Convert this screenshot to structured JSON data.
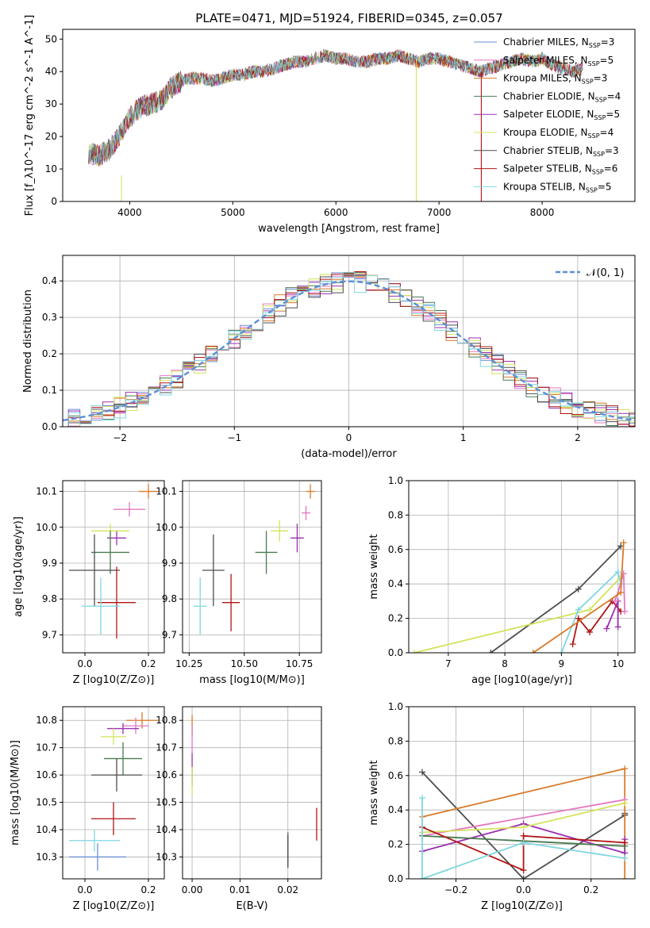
{
  "figure_title": "PLATE=0471, MJD=51924, FIBERID=0345, z=0.057",
  "colors": {
    "Chabrier MILES": "#6b8fd6",
    "Salpeter MILES": "#e377c2",
    "Kroupa MILES": "#d97a2a",
    "Chabrier ELODIE": "#4a7a50",
    "Salpeter ELODIE": "#9b30b0",
    "Kroupa ELODIE": "#d4e35a",
    "Chabrier STELIB": "#4d4d4d",
    "Salpeter STELIB": "#b01515",
    "Kroupa STELIB": "#7fd6e0",
    "gauss": "#5b8fd6"
  },
  "chart_data": [
    {
      "type": "line",
      "id": "spectrum",
      "xlabel": "wavelength [Angstrom, rest frame]",
      "ylabel": "Flux [f_λ10^-17 erg cm^-2 s^-1 A^-1]",
      "xlim": [
        3350,
        8900
      ],
      "ylim": [
        0,
        53
      ],
      "xticks": [
        4000,
        5000,
        6000,
        7000,
        8000
      ],
      "yticks": [
        0,
        10,
        20,
        30,
        40,
        50
      ],
      "x": [
        3600,
        3700,
        3800,
        3900,
        4000,
        4100,
        4200,
        4300,
        4400,
        4500,
        4600,
        4700,
        4800,
        4900,
        5000,
        5100,
        5200,
        5300,
        5400,
        5500,
        5600,
        5700,
        5800,
        5900,
        6000,
        6100,
        6200,
        6300,
        6400,
        6500,
        6600,
        6700,
        6800,
        6900,
        7000,
        7100,
        7200,
        7300,
        7400,
        7500,
        7600,
        7700,
        7800,
        7900,
        8000,
        8100,
        8200,
        8300,
        8400
      ],
      "y": [
        15,
        14,
        16,
        20,
        26,
        29,
        30,
        31,
        35,
        37,
        38,
        38,
        37,
        38,
        39,
        39,
        40,
        40,
        41,
        42,
        43,
        43,
        44,
        45,
        44,
        44,
        43,
        43,
        44,
        44,
        45,
        44,
        43,
        44,
        44,
        43,
        42,
        41,
        40,
        41,
        42,
        43,
        44,
        43,
        44,
        42,
        41,
        40,
        41
      ],
      "series": [
        {
          "name": "Chabrier MILES, N_SSP=3",
          "label_main": "Chabrier MILES, N",
          "label_sub": "SSP",
          "label_end": "=3"
        },
        {
          "name": "Salpeter MILES, N_SSP=5",
          "label_main": "Salpeter MILES, N",
          "label_sub": "SSP",
          "label_end": "=5"
        },
        {
          "name": "Kroupa MILES, N_SSP=3",
          "label_main": "Kroupa MILES, N",
          "label_sub": "SSP",
          "label_end": "=3"
        },
        {
          "name": "Chabrier ELODIE, N_SSP=4",
          "label_main": "Chabrier ELODIE, N",
          "label_sub": "SSP",
          "label_end": "=4"
        },
        {
          "name": "Salpeter ELODIE, N_SSP=5",
          "label_main": "Salpeter ELODIE, N",
          "label_sub": "SSP",
          "label_end": "=5"
        },
        {
          "name": "Kroupa ELODIE, N_SSP=4",
          "label_main": "Kroupa ELODIE, N",
          "label_sub": "SSP",
          "label_end": "=4"
        },
        {
          "name": "Chabrier STELIB, N_SSP=3",
          "label_main": "Chabrier STELIB, N",
          "label_sub": "SSP",
          "label_end": "=3"
        },
        {
          "name": "Salpeter STELIB, N_SSP=6",
          "label_main": "Salpeter STELIB, N",
          "label_sub": "SSP",
          "label_end": "=6"
        },
        {
          "name": "Kroupa STELIB, N_SSP=5",
          "label_main": "Kroupa STELIB, N",
          "label_sub": "SSP",
          "label_end": "=5"
        }
      ],
      "legend": "upper right"
    },
    {
      "type": "line",
      "id": "histogram",
      "xlabel": "(data-model)/error",
      "ylabel": "Normed distribution",
      "xlim": [
        -2.5,
        2.5
      ],
      "ylim": [
        0,
        0.47
      ],
      "xticks": [
        -2,
        -1,
        0,
        1,
        2
      ],
      "yticks": [
        0.0,
        0.1,
        0.2,
        0.3,
        0.4
      ],
      "gauss_label": "𝒩(0, 1)",
      "legend": "upper right",
      "grid": true
    },
    {
      "type": "scatter",
      "id": "age_vs_Z",
      "xlabel": "Z [log10(Z/Z⊙)]",
      "ylabel": "age  [log10(age/yr)]",
      "xlim": [
        -0.07,
        0.25
      ],
      "ylim": [
        9.65,
        10.13
      ],
      "xticks": [
        0.0,
        0.2
      ],
      "yticks": [
        9.7,
        9.8,
        9.9,
        10.0,
        10.1
      ],
      "points": [
        {
          "x": 0.2,
          "y": 10.1,
          "xerr": 0.03,
          "yerr": 0.02
        },
        {
          "x": 0.14,
          "y": 10.05,
          "xerr": 0.05,
          "yerr": 0.02
        },
        {
          "x": 0.1,
          "y": 9.97,
          "xerr": 0.03,
          "yerr": 0.02
        },
        {
          "x": 0.08,
          "y": 9.99,
          "xerr": 0.06,
          "yerr": 0.02
        },
        {
          "x": 0.08,
          "y": 9.93,
          "xerr": 0.06,
          "yerr": 0.06
        },
        {
          "x": 0.03,
          "y": 9.88,
          "xerr": 0.08,
          "yerr": 0.1
        },
        {
          "x": 0.1,
          "y": 9.79,
          "xerr": 0.06,
          "yerr": 0.1
        },
        {
          "x": 0.05,
          "y": 9.78,
          "xerr": 0.06,
          "yerr": 0.08
        }
      ]
    },
    {
      "type": "scatter",
      "id": "age_vs_mass",
      "xlabel": "mass [log10(M/M⊙)]",
      "ylabel": "",
      "xlim": [
        10.22,
        10.85
      ],
      "ylim": [
        9.65,
        10.13
      ],
      "xticks": [
        10.25,
        10.5,
        10.75
      ],
      "yticks": [
        9.7,
        9.8,
        9.9,
        10.0,
        10.1
      ],
      "points": [
        {
          "x": 10.8,
          "y": 10.1,
          "xerr": 0.02,
          "yerr": 0.02
        },
        {
          "x": 10.78,
          "y": 10.04,
          "xerr": 0.02,
          "yerr": 0.02
        },
        {
          "x": 10.74,
          "y": 9.97,
          "xerr": 0.03,
          "yerr": 0.04
        },
        {
          "x": 10.66,
          "y": 9.99,
          "xerr": 0.04,
          "yerr": 0.03
        },
        {
          "x": 10.6,
          "y": 9.93,
          "xerr": 0.05,
          "yerr": 0.06
        },
        {
          "x": 10.36,
          "y": 9.88,
          "xerr": 0.05,
          "yerr": 0.1
        },
        {
          "x": 10.44,
          "y": 9.79,
          "xerr": 0.04,
          "yerr": 0.08
        },
        {
          "x": 10.3,
          "y": 9.78,
          "xerr": 0.03,
          "yerr": 0.08
        }
      ]
    },
    {
      "type": "line",
      "id": "weight_vs_age",
      "xlabel": "age  [log10(age/yr)]",
      "ylabel": "mass weight",
      "xlim": [
        6.3,
        10.3
      ],
      "ylim": [
        0,
        1.0
      ],
      "xticks": [
        7,
        8,
        9,
        10
      ],
      "yticks": [
        0.0,
        0.2,
        0.4,
        0.6,
        0.8,
        1.0
      ],
      "series": [
        {
          "name": "Chabrier STELIB",
          "x": [
            7.75,
            9.3,
            10.05
          ],
          "y": [
            0.0,
            0.37,
            0.62
          ]
        },
        {
          "name": "Kroupa ELODIE",
          "x": [
            6.4,
            9.5,
            10.05
          ],
          "y": [
            0.0,
            0.25,
            0.44
          ]
        },
        {
          "name": "Kroupa STELIB",
          "x": [
            9.0,
            9.3,
            10.0,
            10.05
          ],
          "y": [
            0.0,
            0.25,
            0.47,
            0.4
          ]
        },
        {
          "name": "Salpeter STELIB",
          "x": [
            9.2,
            9.3,
            9.5,
            9.9,
            10.05
          ],
          "y": [
            0.05,
            0.2,
            0.12,
            0.3,
            0.24
          ]
        },
        {
          "name": "Salpeter ELODIE",
          "x": [
            9.8,
            10.0,
            10.0
          ],
          "y": [
            0.14,
            0.3,
            0.15
          ]
        },
        {
          "name": "Salpeter MILES",
          "x": [
            9.95,
            10.1,
            10.12
          ],
          "y": [
            0.3,
            0.46,
            0.24
          ]
        },
        {
          "name": "Kroupa MILES",
          "x": [
            8.5,
            10.05,
            10.1
          ],
          "y": [
            0.0,
            0.35,
            0.64
          ]
        }
      ]
    },
    {
      "type": "scatter",
      "id": "mass_vs_Z",
      "xlabel": "Z [log10(Z/Z⊙)]",
      "ylabel": "mass [log10(M/M⊙)]",
      "xlim": [
        -0.07,
        0.25
      ],
      "ylim": [
        10.22,
        10.85
      ],
      "xticks": [
        0.0,
        0.2
      ],
      "yticks": [
        10.3,
        10.4,
        10.5,
        10.6,
        10.7,
        10.8
      ],
      "points": [
        {
          "x": 0.18,
          "y": 10.8,
          "xerr": 0.05,
          "yerr": 0.03
        },
        {
          "x": 0.16,
          "y": 10.78,
          "xerr": 0.04,
          "yerr": 0.03
        },
        {
          "x": 0.12,
          "y": 10.77,
          "xerr": 0.05,
          "yerr": 0.02
        },
        {
          "x": 0.09,
          "y": 10.74,
          "xerr": 0.04,
          "yerr": 0.03
        },
        {
          "x": 0.12,
          "y": 10.66,
          "xerr": 0.06,
          "yerr": 0.06
        },
        {
          "x": 0.1,
          "y": 10.6,
          "xerr": 0.08,
          "yerr": 0.06
        },
        {
          "x": 0.09,
          "y": 10.44,
          "xerr": 0.07,
          "yerr": 0.06
        },
        {
          "x": 0.03,
          "y": 10.36,
          "xerr": 0.08,
          "yerr": 0.04
        },
        {
          "x": 0.04,
          "y": 10.3,
          "xerr": 0.09,
          "yerr": 0.05
        }
      ]
    },
    {
      "type": "scatter",
      "id": "mass_vs_ebv",
      "xlabel": "E(B-V)",
      "ylabel": "",
      "xlim": [
        -0.002,
        0.027
      ],
      "ylim": [
        10.22,
        10.85
      ],
      "xticks": [
        0.0,
        0.01,
        0.02
      ],
      "yticks": [
        10.3,
        10.4,
        10.5,
        10.6,
        10.7,
        10.8
      ],
      "points": [
        {
          "x": 0.0,
          "y": 10.78,
          "xerr": 0.0,
          "yerr": 0.04
        },
        {
          "x": 0.0,
          "y": 10.73,
          "xerr": 0.0,
          "yerr": 0.05
        },
        {
          "x": 0.0,
          "y": 10.62,
          "xerr": 0.0,
          "yerr": 0.06
        },
        {
          "x": 0.0,
          "y": 10.58,
          "xerr": 0.0,
          "yerr": 0.05
        },
        {
          "x": 0.02,
          "y": 10.33,
          "xerr": 0.0,
          "yerr": 0.06
        },
        {
          "x": 0.02,
          "y": 10.32,
          "xerr": 0.0,
          "yerr": 0.06
        },
        {
          "x": 0.026,
          "y": 10.42,
          "xerr": 0.0,
          "yerr": 0.06
        }
      ]
    },
    {
      "type": "line",
      "id": "weight_vs_Z",
      "xlabel": "Z [log10(Z/Z⊙)]",
      "ylabel": "mass weight",
      "xlim": [
        -0.34,
        0.33
      ],
      "ylim": [
        0,
        1.0
      ],
      "xticks": [
        -0.2,
        0.0,
        0.2
      ],
      "yticks": [
        0.0,
        0.2,
        0.4,
        0.6,
        0.8,
        1.0
      ],
      "series": [
        {
          "name": "Chabrier STELIB",
          "x": [
            -0.3,
            0.0,
            0.3,
            0.3
          ],
          "y": [
            0.62,
            0.0,
            0.37,
            0.38
          ]
        },
        {
          "name": "Kroupa MILES",
          "x": [
            -0.3,
            0.3,
            0.3
          ],
          "y": [
            0.36,
            0.64,
            0.0
          ]
        },
        {
          "name": "Salpeter MILES",
          "x": [
            -0.3,
            0.3
          ],
          "y": [
            0.25,
            0.46
          ]
        },
        {
          "name": "Salpeter ELODIE",
          "x": [
            -0.3,
            0.0,
            0.3,
            0.3
          ],
          "y": [
            0.16,
            0.32,
            0.15,
            0.23
          ]
        },
        {
          "name": "Chabrier ELODIE",
          "x": [
            -0.3,
            0.3
          ],
          "y": [
            0.25,
            0.19
          ]
        },
        {
          "name": "Kroupa ELODIE",
          "x": [
            -0.3,
            0.0,
            0.3
          ],
          "y": [
            0.27,
            0.3,
            0.44
          ]
        },
        {
          "name": "Salpeter STELIB",
          "x": [
            -0.3,
            0.0,
            0.0,
            0.3
          ],
          "y": [
            0.3,
            0.05,
            0.25,
            0.21
          ]
        },
        {
          "name": "Kroupa STELIB",
          "x": [
            -0.3,
            -0.3,
            0.0,
            0.3
          ],
          "y": [
            0.47,
            0.0,
            0.21,
            0.12
          ]
        }
      ]
    }
  ]
}
